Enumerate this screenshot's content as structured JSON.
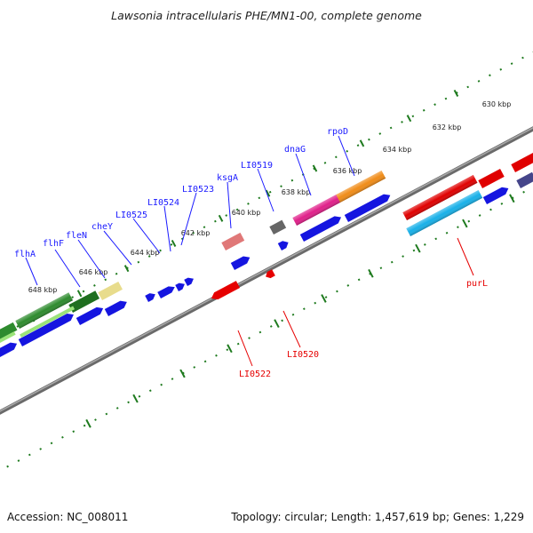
{
  "title": "Lawsonia intracellularis PHE/MN1-00, complete genome",
  "footer": {
    "accession": "Accession: NC_008011",
    "topology": "Topology: circular; Length: 1,457,619 bp; Genes: 1,229"
  },
  "colors": {
    "backbone": "#808080",
    "tick": "#1e7a1e",
    "forward_label": "#1a1aff",
    "reverse_label": "#e60000"
  },
  "tick_labels": [
    "648 kbp",
    "646 kbp",
    "644 kbp",
    "642 kbp",
    "640 kbp",
    "638 kbp",
    "636 kbp",
    "634 kbp",
    "632 kbp",
    "630 kbp"
  ],
  "gene_labels_forward": [
    "flhA",
    "flhF",
    "fleN",
    "cheY",
    "LI0525",
    "LI0524",
    "LI0523",
    "ksgA",
    "LI0519",
    "dnaG",
    "rpoD"
  ],
  "gene_labels_reverse": [
    "LI0522",
    "LI0520",
    "purL"
  ]
}
